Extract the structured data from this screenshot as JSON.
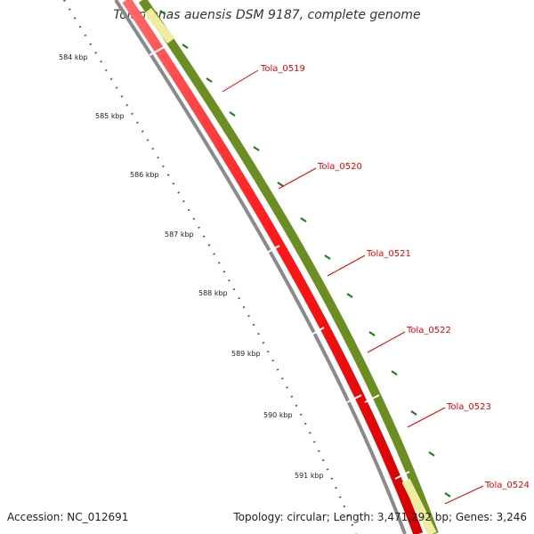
{
  "title": "Tolumonas auensis DSM 9187, complete genome",
  "footer": {
    "accession": "Accession: NC_012691",
    "summary": "Topology: circular; Length: 3,471,292 bp; Genes: 3,246"
  },
  "ruler": {
    "labels": [
      "584 kbp",
      "585 kbp",
      "586 kbp",
      "587 kbp",
      "588 kbp",
      "589 kbp",
      "590 kbp",
      "591 kbp"
    ],
    "tick_color": "#1a7a1a"
  },
  "genes": {
    "labels": [
      "Tola_0519",
      "Tola_0520",
      "Tola_0521",
      "Tola_0522",
      "Tola_0523",
      "Tola_0524"
    ],
    "label_color": "#ee0000"
  },
  "colors": {
    "backbone": "#8a8a8a",
    "cds_reverse": "#ff1a1a",
    "cds_forward": "#6b8e23",
    "feature_light": "#f0eca0"
  }
}
